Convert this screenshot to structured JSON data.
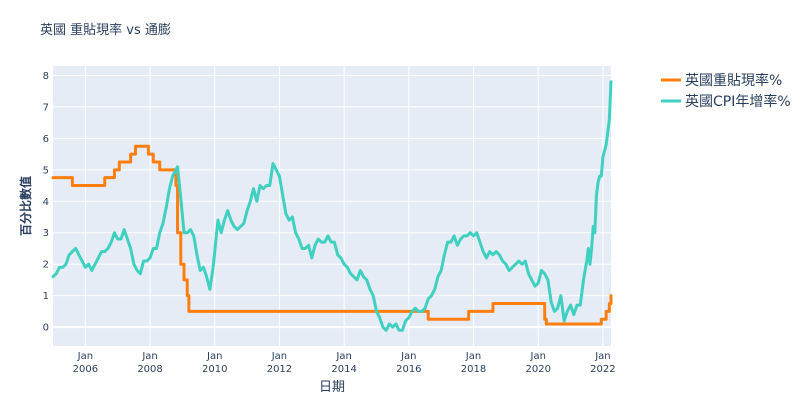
{
  "chart_data": {
    "type": "line",
    "title": "英國 重貼現率 vs 通膨",
    "xlabel": "日期",
    "ylabel": "百分比數值",
    "xlim": [
      2005.0,
      2022.25
    ],
    "ylim": [
      -0.6,
      8.3
    ],
    "yticks": [
      0,
      1,
      2,
      3,
      4,
      5,
      6,
      7,
      8
    ],
    "xticks": [
      {
        "x": 2006.0,
        "line1": "Jan",
        "line2": "2006"
      },
      {
        "x": 2008.0,
        "line1": "Jan",
        "line2": "2008"
      },
      {
        "x": 2010.0,
        "line1": "Jan",
        "line2": "2010"
      },
      {
        "x": 2012.0,
        "line1": "Jan",
        "line2": "2012"
      },
      {
        "x": 2014.0,
        "line1": "Jan",
        "line2": "2014"
      },
      {
        "x": 2016.0,
        "line1": "Jan",
        "line2": "2016"
      },
      {
        "x": 2018.0,
        "line1": "Jan",
        "line2": "2018"
      },
      {
        "x": 2020.0,
        "line1": "Jan",
        "line2": "2020"
      },
      {
        "x": 2022.0,
        "line1": "Jan",
        "line2": "2022"
      }
    ],
    "legend_position": "top-right",
    "series": [
      {
        "name": "英國重貼現率%",
        "color": "#ff7f0e",
        "step": true,
        "points": [
          [
            2005.0,
            4.75
          ],
          [
            2005.6,
            4.5
          ],
          [
            2006.6,
            4.75
          ],
          [
            2006.9,
            5.0
          ],
          [
            2007.05,
            5.25
          ],
          [
            2007.4,
            5.5
          ],
          [
            2007.55,
            5.75
          ],
          [
            2007.95,
            5.5
          ],
          [
            2008.1,
            5.25
          ],
          [
            2008.3,
            5.0
          ],
          [
            2008.8,
            4.5
          ],
          [
            2008.85,
            3.0
          ],
          [
            2008.95,
            2.0
          ],
          [
            2009.05,
            1.5
          ],
          [
            2009.15,
            1.0
          ],
          [
            2009.2,
            0.5
          ],
          [
            2016.6,
            0.25
          ],
          [
            2017.85,
            0.5
          ],
          [
            2018.6,
            0.75
          ],
          [
            2020.2,
            0.25
          ],
          [
            2020.25,
            0.1
          ],
          [
            2021.95,
            0.25
          ],
          [
            2022.1,
            0.5
          ],
          [
            2022.2,
            0.75
          ],
          [
            2022.25,
            1.0
          ]
        ]
      },
      {
        "name": "英國CPI年增率%",
        "color": "#40d0c0",
        "step": false,
        "points": [
          [
            2005.0,
            1.6
          ],
          [
            2005.1,
            1.7
          ],
          [
            2005.2,
            1.9
          ],
          [
            2005.3,
            1.9
          ],
          [
            2005.4,
            2.0
          ],
          [
            2005.5,
            2.3
          ],
          [
            2005.6,
            2.4
          ],
          [
            2005.7,
            2.5
          ],
          [
            2005.8,
            2.3
          ],
          [
            2005.9,
            2.1
          ],
          [
            2006.0,
            1.9
          ],
          [
            2006.1,
            2.0
          ],
          [
            2006.2,
            1.8
          ],
          [
            2006.3,
            2.0
          ],
          [
            2006.4,
            2.2
          ],
          [
            2006.5,
            2.4
          ],
          [
            2006.6,
            2.4
          ],
          [
            2006.7,
            2.5
          ],
          [
            2006.8,
            2.7
          ],
          [
            2006.9,
            3.0
          ],
          [
            2007.0,
            2.8
          ],
          [
            2007.1,
            2.8
          ],
          [
            2007.2,
            3.1
          ],
          [
            2007.3,
            2.8
          ],
          [
            2007.4,
            2.5
          ],
          [
            2007.5,
            2.0
          ],
          [
            2007.6,
            1.8
          ],
          [
            2007.7,
            1.7
          ],
          [
            2007.8,
            2.1
          ],
          [
            2007.9,
            2.1
          ],
          [
            2008.0,
            2.2
          ],
          [
            2008.1,
            2.5
          ],
          [
            2008.2,
            2.5
          ],
          [
            2008.3,
            3.0
          ],
          [
            2008.4,
            3.3
          ],
          [
            2008.5,
            3.8
          ],
          [
            2008.6,
            4.4
          ],
          [
            2008.7,
            4.8
          ],
          [
            2008.8,
            5.0
          ],
          [
            2008.85,
            5.1
          ],
          [
            2008.95,
            4.1
          ],
          [
            2009.05,
            3.0
          ],
          [
            2009.15,
            3.0
          ],
          [
            2009.25,
            3.1
          ],
          [
            2009.35,
            2.9
          ],
          [
            2009.45,
            2.3
          ],
          [
            2009.55,
            1.8
          ],
          [
            2009.65,
            1.9
          ],
          [
            2009.75,
            1.6
          ],
          [
            2009.85,
            1.2
          ],
          [
            2009.95,
            1.9
          ],
          [
            2010.05,
            2.9
          ],
          [
            2010.1,
            3.4
          ],
          [
            2010.2,
            3.0
          ],
          [
            2010.3,
            3.4
          ],
          [
            2010.4,
            3.7
          ],
          [
            2010.5,
            3.4
          ],
          [
            2010.6,
            3.2
          ],
          [
            2010.7,
            3.1
          ],
          [
            2010.8,
            3.2
          ],
          [
            2010.9,
            3.3
          ],
          [
            2011.0,
            3.7
          ],
          [
            2011.1,
            4.0
          ],
          [
            2011.2,
            4.4
          ],
          [
            2011.3,
            4.0
          ],
          [
            2011.4,
            4.5
          ],
          [
            2011.5,
            4.4
          ],
          [
            2011.6,
            4.5
          ],
          [
            2011.7,
            4.5
          ],
          [
            2011.8,
            5.2
          ],
          [
            2011.9,
            5.0
          ],
          [
            2012.0,
            4.8
          ],
          [
            2012.1,
            4.2
          ],
          [
            2012.2,
            3.6
          ],
          [
            2012.3,
            3.4
          ],
          [
            2012.4,
            3.5
          ],
          [
            2012.5,
            3.0
          ],
          [
            2012.6,
            2.8
          ],
          [
            2012.7,
            2.5
          ],
          [
            2012.8,
            2.5
          ],
          [
            2012.9,
            2.6
          ],
          [
            2013.0,
            2.2
          ],
          [
            2013.1,
            2.6
          ],
          [
            2013.2,
            2.8
          ],
          [
            2013.3,
            2.7
          ],
          [
            2013.4,
            2.7
          ],
          [
            2013.5,
            2.9
          ],
          [
            2013.6,
            2.7
          ],
          [
            2013.7,
            2.7
          ],
          [
            2013.8,
            2.3
          ],
          [
            2013.9,
            2.2
          ],
          [
            2014.0,
            2.0
          ],
          [
            2014.1,
            1.9
          ],
          [
            2014.2,
            1.7
          ],
          [
            2014.3,
            1.6
          ],
          [
            2014.4,
            1.5
          ],
          [
            2014.5,
            1.8
          ],
          [
            2014.6,
            1.6
          ],
          [
            2014.7,
            1.5
          ],
          [
            2014.8,
            1.2
          ],
          [
            2014.9,
            1.0
          ],
          [
            2015.0,
            0.5
          ],
          [
            2015.1,
            0.3
          ],
          [
            2015.2,
            0.0
          ],
          [
            2015.3,
            -0.1
          ],
          [
            2015.4,
            0.1
          ],
          [
            2015.5,
            0.0
          ],
          [
            2015.6,
            0.1
          ],
          [
            2015.7,
            -0.1
          ],
          [
            2015.8,
            -0.1
          ],
          [
            2015.9,
            0.2
          ],
          [
            2016.0,
            0.3
          ],
          [
            2016.1,
            0.5
          ],
          [
            2016.2,
            0.6
          ],
          [
            2016.3,
            0.5
          ],
          [
            2016.4,
            0.5
          ],
          [
            2016.5,
            0.6
          ],
          [
            2016.6,
            0.9
          ],
          [
            2016.7,
            1.0
          ],
          [
            2016.8,
            1.2
          ],
          [
            2016.9,
            1.6
          ],
          [
            2017.0,
            1.8
          ],
          [
            2017.1,
            2.3
          ],
          [
            2017.2,
            2.7
          ],
          [
            2017.3,
            2.7
          ],
          [
            2017.4,
            2.9
          ],
          [
            2017.5,
            2.6
          ],
          [
            2017.6,
            2.8
          ],
          [
            2017.7,
            2.9
          ],
          [
            2017.8,
            2.9
          ],
          [
            2017.9,
            3.0
          ],
          [
            2018.0,
            2.9
          ],
          [
            2018.1,
            3.0
          ],
          [
            2018.2,
            2.7
          ],
          [
            2018.3,
            2.4
          ],
          [
            2018.4,
            2.2
          ],
          [
            2018.5,
            2.4
          ],
          [
            2018.6,
            2.3
          ],
          [
            2018.7,
            2.4
          ],
          [
            2018.8,
            2.3
          ],
          [
            2018.9,
            2.1
          ],
          [
            2019.0,
            2.0
          ],
          [
            2019.1,
            1.8
          ],
          [
            2019.2,
            1.9
          ],
          [
            2019.3,
            2.0
          ],
          [
            2019.4,
            2.1
          ],
          [
            2019.5,
            2.0
          ],
          [
            2019.6,
            2.1
          ],
          [
            2019.7,
            1.7
          ],
          [
            2019.8,
            1.5
          ],
          [
            2019.9,
            1.3
          ],
          [
            2020.0,
            1.4
          ],
          [
            2020.1,
            1.8
          ],
          [
            2020.2,
            1.7
          ],
          [
            2020.3,
            1.5
          ],
          [
            2020.4,
            0.8
          ],
          [
            2020.5,
            0.5
          ],
          [
            2020.6,
            0.6
          ],
          [
            2020.7,
            1.0
          ],
          [
            2020.8,
            0.2
          ],
          [
            2020.9,
            0.5
          ],
          [
            2021.0,
            0.7
          ],
          [
            2021.1,
            0.4
          ],
          [
            2021.2,
            0.7
          ],
          [
            2021.3,
            0.7
          ],
          [
            2021.4,
            1.5
          ],
          [
            2021.5,
            2.1
          ],
          [
            2021.55,
            2.5
          ],
          [
            2021.6,
            2.0
          ],
          [
            2021.65,
            2.5
          ],
          [
            2021.7,
            3.2
          ],
          [
            2021.75,
            3.0
          ],
          [
            2021.8,
            4.2
          ],
          [
            2021.85,
            4.6
          ],
          [
            2021.9,
            4.8
          ],
          [
            2021.95,
            4.8
          ],
          [
            2022.0,
            5.4
          ],
          [
            2022.1,
            5.8
          ],
          [
            2022.2,
            6.6
          ],
          [
            2022.25,
            7.8
          ]
        ]
      }
    ]
  }
}
